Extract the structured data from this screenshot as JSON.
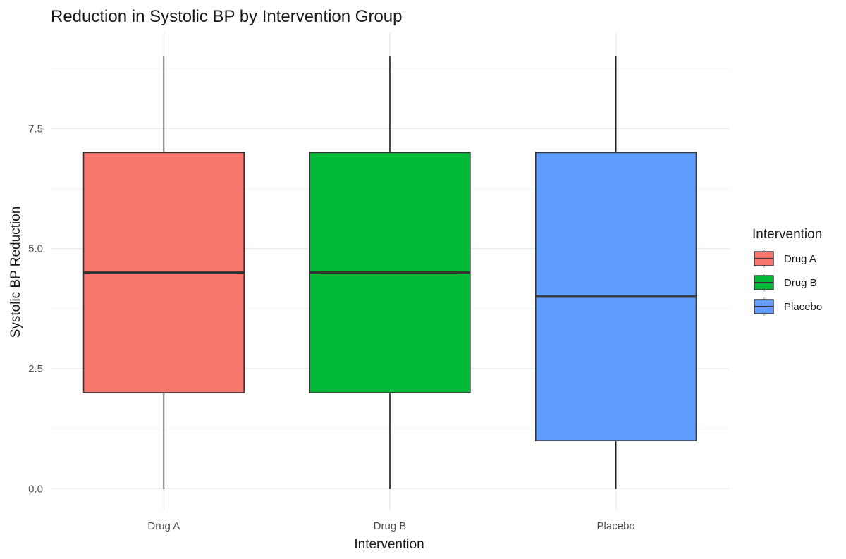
{
  "chart_data": {
    "type": "boxplot",
    "title": "Reduction in Systolic BP by Intervention Group",
    "xlabel": "Intervention",
    "ylabel": "Systolic BP Reduction",
    "categories": [
      "Drug A",
      "Drug B",
      "Placebo"
    ],
    "ylim": [
      -0.45,
      9.5
    ],
    "y_ticks": [
      0.0,
      2.5,
      5.0,
      7.5
    ],
    "y_tick_labels": [
      "0.0",
      "2.5",
      "5.0",
      "7.5"
    ],
    "grid": true,
    "legend": {
      "title": "Intervention",
      "placement": "right",
      "items": [
        "Drug A",
        "Drug B",
        "Placebo"
      ]
    },
    "series": [
      {
        "name": "Drug A",
        "color": "#F8766D",
        "min": 0,
        "q1": 2,
        "median": 4.5,
        "q3": 7,
        "max": 9
      },
      {
        "name": "Drug B",
        "color": "#00BA38",
        "min": 0,
        "q1": 2,
        "median": 4.5,
        "q3": 7,
        "max": 9
      },
      {
        "name": "Placebo",
        "color": "#619CFF",
        "min": 0,
        "q1": 1,
        "median": 4,
        "q3": 7,
        "max": 9
      }
    ]
  }
}
